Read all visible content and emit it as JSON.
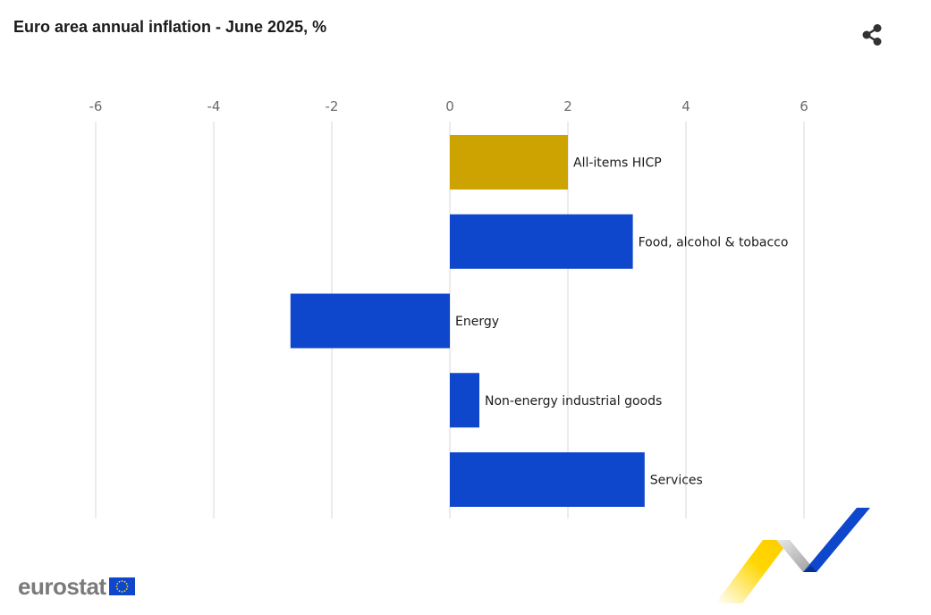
{
  "title": "Euro area annual inflation - June 2025, %",
  "share": {
    "icon": "share-icon"
  },
  "brand": {
    "text": "eurostat",
    "flag_icon": "eu-flag-icon"
  },
  "colors": {
    "highlight": "#cca300",
    "bar": "#0e47cb",
    "grid": "#e6e6e6",
    "axis_text": "#6b6b6b"
  },
  "chart_data": {
    "type": "bar",
    "orientation": "horizontal",
    "title": "Euro area annual inflation - June 2025, %",
    "xlim": [
      -6,
      7.5
    ],
    "ticks": [
      -6,
      -4,
      -2,
      0,
      2,
      4,
      6
    ],
    "tick_labels": [
      "-6",
      "-4",
      "-2",
      "0",
      "2",
      "4",
      "6"
    ],
    "axis_position": "top",
    "grid": true,
    "categories": [
      "All-items HICP",
      "Food, alcohol & tobacco",
      "Energy",
      "Non-energy industrial goods",
      "Services"
    ],
    "values": [
      2.0,
      3.1,
      -2.7,
      0.5,
      3.3
    ],
    "colors": [
      "#cca300",
      "#0e47cb",
      "#0e47cb",
      "#0e47cb",
      "#0e47cb"
    ]
  }
}
